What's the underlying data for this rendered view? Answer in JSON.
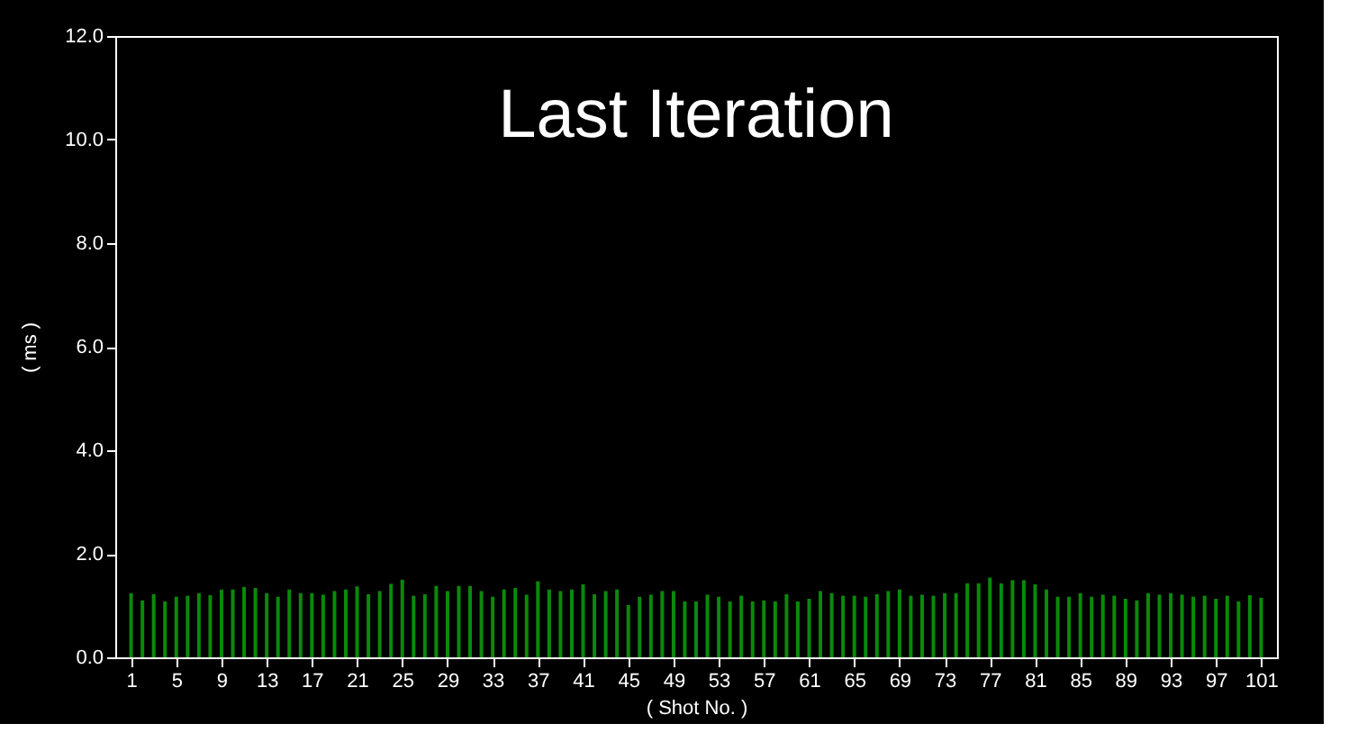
{
  "chart_data": {
    "type": "bar",
    "title": "Last Iteration",
    "xlabel": "( Shot No. )",
    "ylabel": "( ms )",
    "x": [
      1,
      2,
      3,
      4,
      5,
      6,
      7,
      8,
      9,
      10,
      11,
      12,
      13,
      14,
      15,
      16,
      17,
      18,
      19,
      20,
      21,
      22,
      23,
      24,
      25,
      26,
      27,
      28,
      29,
      30,
      31,
      32,
      33,
      34,
      35,
      36,
      37,
      38,
      39,
      40,
      41,
      42,
      43,
      44,
      45,
      46,
      47,
      48,
      49,
      50,
      51,
      52,
      53,
      54,
      55,
      56,
      57,
      58,
      59,
      60,
      61,
      62,
      63,
      64,
      65,
      66,
      67,
      68,
      69,
      70,
      71,
      72,
      73,
      74,
      75,
      76,
      77,
      78,
      79,
      80,
      81,
      82,
      83,
      84,
      85,
      86,
      87,
      88,
      89,
      90,
      91,
      92,
      93,
      94,
      95,
      96,
      97,
      98,
      99,
      100,
      101
    ],
    "values": [
      1.24,
      1.1,
      1.22,
      1.08,
      1.17,
      1.19,
      1.24,
      1.2,
      1.31,
      1.31,
      1.36,
      1.34,
      1.24,
      1.17,
      1.31,
      1.24,
      1.24,
      1.21,
      1.28,
      1.31,
      1.37,
      1.22,
      1.28,
      1.42,
      1.5,
      1.19,
      1.22,
      1.38,
      1.28,
      1.38,
      1.38,
      1.28,
      1.17,
      1.31,
      1.34,
      1.21,
      1.47,
      1.31,
      1.28,
      1.31,
      1.41,
      1.22,
      1.28,
      1.31,
      1.01,
      1.17,
      1.21,
      1.28,
      1.28,
      1.08,
      1.08,
      1.21,
      1.17,
      1.08,
      1.19,
      1.08,
      1.1,
      1.08,
      1.22,
      1.08,
      1.13,
      1.28,
      1.24,
      1.19,
      1.19,
      1.17,
      1.22,
      1.28,
      1.31,
      1.19,
      1.21,
      1.19,
      1.24,
      1.24,
      1.43,
      1.43,
      1.54,
      1.43,
      1.49,
      1.49,
      1.41,
      1.31,
      1.17,
      1.17,
      1.24,
      1.17,
      1.21,
      1.19,
      1.13,
      1.1,
      1.24,
      1.21,
      1.24,
      1.21,
      1.17,
      1.19,
      1.13,
      1.19,
      1.08,
      1.2,
      1.15
    ],
    "color": "#0a8a0a",
    "xlim": [
      -0.4,
      102.4
    ],
    "xticks": [
      1,
      5,
      9,
      13,
      17,
      21,
      25,
      29,
      33,
      37,
      41,
      45,
      49,
      53,
      57,
      61,
      65,
      69,
      73,
      77,
      81,
      85,
      89,
      93,
      97,
      101
    ],
    "ylim": [
      0,
      12
    ],
    "yticks": [
      {
        "value": 0,
        "label": "0.0"
      },
      {
        "value": 2,
        "label": "2.0"
      },
      {
        "value": 4,
        "label": "4.0"
      },
      {
        "value": 6,
        "label": "6.0"
      },
      {
        "value": 8,
        "label": "8.0"
      },
      {
        "value": 10,
        "label": "10.0"
      },
      {
        "value": 12,
        "label": "12.0"
      }
    ],
    "grid": false
  }
}
